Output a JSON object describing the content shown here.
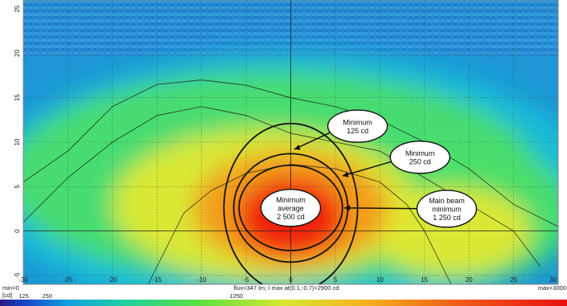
{
  "chart_data": {
    "type": "heatmap",
    "title": "",
    "xlabel": "",
    "ylabel": "",
    "xlim": [
      -30,
      30
    ],
    "ylim": [
      -6,
      26
    ],
    "x_ticks": [
      -30,
      -25,
      -20,
      -15,
      -10,
      -5,
      0,
      5,
      10,
      15,
      20,
      25,
      30
    ],
    "x_tick_labels": [
      "-30",
      "-25",
      "-20",
      "-15",
      "-10",
      "-5",
      "0",
      "5",
      "10",
      "15",
      "20",
      "25",
      "30"
    ],
    "y_ticks": [
      -5,
      0,
      5,
      10,
      15,
      20,
      25
    ],
    "y_tick_labels": [
      "-5",
      "0",
      "5",
      "10",
      "15",
      "20",
      "25"
    ],
    "grid": true,
    "grid_style": "dotted",
    "peak": {
      "x": 0.1,
      "y": -0.7,
      "value": 2900
    },
    "requirement_ellipses": [
      {
        "label": "Minimum\n125 cd",
        "value": 125,
        "center": [
          0,
          2.6
        ],
        "radius": [
          7.5,
          9.5
        ]
      },
      {
        "label": "Minimum\n250 cd",
        "value": 250,
        "center": [
          0,
          2.6
        ],
        "radius": [
          6.4,
          6.1
        ]
      },
      {
        "label": "Main beam\nminimum\n1 250 cd",
        "value": 1250,
        "center": [
          0,
          2.6
        ],
        "radius": [
          5.8,
          4.8
        ]
      },
      {
        "label": "Minimum\naverage\n2 500 cd",
        "value": 2500,
        "center": [
          0,
          2.6
        ],
        "radius": [
          4.1,
          2.8
        ]
      }
    ],
    "callouts": [
      {
        "lines": [
          "Minimum",
          "125 cd"
        ],
        "box_center": [
          7.5,
          11.8
        ],
        "arrow_to": [
          0.4,
          9.2
        ]
      },
      {
        "lines": [
          "Minimum",
          "250 cd"
        ],
        "box_center": [
          14.5,
          8.3
        ],
        "arrow_to": [
          5.8,
          6.2
        ]
      },
      {
        "lines": [
          "Main beam",
          "minimum",
          "1 250 cd"
        ],
        "box_center": [
          17.5,
          2.5
        ],
        "arrow_to": [
          6.0,
          2.6
        ]
      },
      {
        "lines": [
          "Minimum",
          "average",
          "2 500 cd"
        ],
        "box_center": [
          0,
          2.6
        ],
        "arrow_to": null
      }
    ],
    "colorbar": {
      "min_label": "min=0",
      "max_label": "max=3000",
      "unit_label": "[cd]",
      "range": [
        0,
        3000
      ],
      "ticks": [
        125,
        250,
        1250
      ],
      "tick_labels": [
        "125",
        "250",
        "1250"
      ]
    },
    "info_text": "flux=347 lm; I max at(0.1,-0.7)=2900 cd"
  },
  "colors": {
    "low": "#1f6fd0",
    "cyan": "#16c0d8",
    "green": "#49de6a",
    "yellow": "#e2e832",
    "orange": "#f39a1c",
    "high": "#f01e10"
  }
}
